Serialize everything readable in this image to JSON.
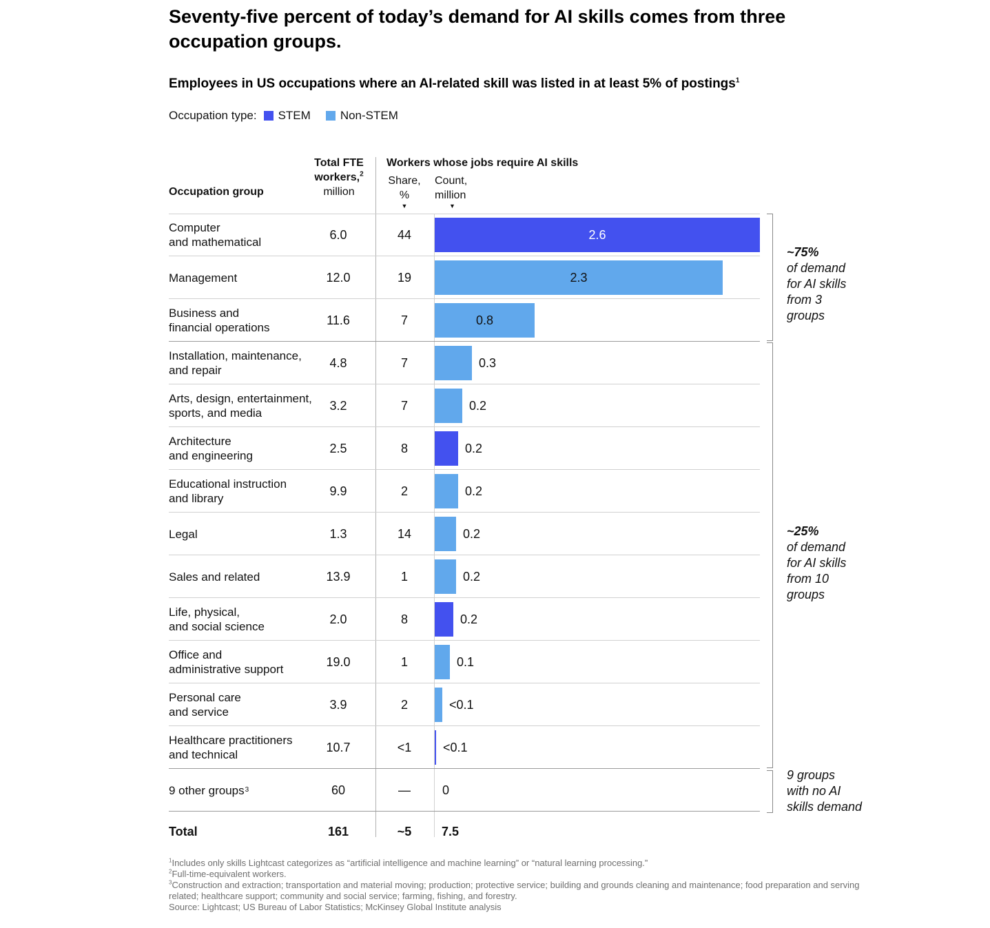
{
  "title": "Seventy-five percent of today’s demand for AI skills comes from three occupation groups.",
  "subtitle": "Employees in US occupations where an AI-related skill was listed in at least 5% of postings",
  "subtitle_sup": "1",
  "legend": {
    "label": "Occupation type:",
    "items": [
      {
        "name": "STEM",
        "color": "#4351ef"
      },
      {
        "name": "Non-STEM",
        "color": "#61a8ec"
      }
    ]
  },
  "headers": {
    "group": "Occupation group",
    "fte_line1": "Total FTE",
    "fte_line2": "workers,",
    "fte_sup": "2",
    "fte_unit": "million",
    "workers": "Workers whose jobs require AI skills",
    "share": "Share,",
    "share_unit": "%",
    "count": "Count,",
    "count_unit": "million",
    "arrow": "▼"
  },
  "chart_data": {
    "type": "bar",
    "title": "Employees in US occupations where an AI-related skill was listed in at least 5% of postings",
    "xlabel": "Count, million",
    "xlim": [
      0,
      2.6
    ],
    "rows": [
      {
        "group": "Computer\nand mathematical",
        "fte": "6.0",
        "share": "44",
        "count": 2.6,
        "label": "2.6",
        "type": "STEM"
      },
      {
        "group": "Management",
        "fte": "12.0",
        "share": "19",
        "count": 2.3,
        "label": "2.3",
        "type": "Non-STEM"
      },
      {
        "group": "Business and\nfinancial operations",
        "fte": "11.6",
        "share": "7",
        "count": 0.8,
        "label": "0.8",
        "type": "Non-STEM"
      },
      {
        "group": "Installation, maintenance,\nand repair",
        "fte": "4.8",
        "share": "7",
        "count": 0.3,
        "label": "0.3",
        "type": "Non-STEM"
      },
      {
        "group": "Arts, design, entertainment,\nsports, and media",
        "fte": "3.2",
        "share": "7",
        "count": 0.22,
        "label": "0.2",
        "type": "Non-STEM"
      },
      {
        "group": "Architecture\nand engineering",
        "fte": "2.5",
        "share": "8",
        "count": 0.19,
        "label": "0.2",
        "type": "STEM"
      },
      {
        "group": "Educational instruction\nand library",
        "fte": "9.9",
        "share": "2",
        "count": 0.19,
        "label": "0.2",
        "type": "Non-STEM"
      },
      {
        "group": "Legal",
        "fte": "1.3",
        "share": "14",
        "count": 0.17,
        "label": "0.2",
        "type": "Non-STEM"
      },
      {
        "group": "Sales and related",
        "fte": "13.9",
        "share": "1",
        "count": 0.17,
        "label": "0.2",
        "type": "Non-STEM"
      },
      {
        "group": "Life, physical,\nand social science",
        "fte": "2.0",
        "share": "8",
        "count": 0.15,
        "label": "0.2",
        "type": "STEM"
      },
      {
        "group": "Office and\nadministrative support",
        "fte": "19.0",
        "share": "1",
        "count": 0.12,
        "label": "0.1",
        "type": "Non-STEM"
      },
      {
        "group": "Personal care\nand service",
        "fte": "3.9",
        "share": "2",
        "count": 0.06,
        "label": "<0.1",
        "type": "Non-STEM"
      },
      {
        "group": "Healthcare practitioners\nand technical",
        "fte": "10.7",
        "share": "<1",
        "count": 0.01,
        "label": "<0.1",
        "type": "STEM"
      },
      {
        "group": "9 other groups",
        "group_sup": "3",
        "fte": "60",
        "share": "—",
        "count": 0,
        "label": "0",
        "type": "none"
      }
    ],
    "total": {
      "label": "Total",
      "fte": "161",
      "share": "~5",
      "count": "7.5"
    }
  },
  "annotations": {
    "top_pct": "~75%",
    "top_text": "of demand\nfor AI skills\nfrom 3\ngroups",
    "mid_pct": "~25%",
    "mid_text": "of demand\nfor AI skills\nfrom 10\ngroups",
    "bottom_text": "9 groups\nwith no AI\nskills demand"
  },
  "footnotes": {
    "n1_sup": "1",
    "n1": "Includes only skills Lightcast categorizes as “artificial intelligence and machine learning” or “natural learning processing.”",
    "n2_sup": "2",
    "n2": "Full-time-equivalent workers.",
    "n3_sup": "3",
    "n3": "Construction and extraction; transportation and material moving; production; protective service; building and grounds cleaning and maintenance; food preparation and serving related; healthcare support; community and social service; farming, fishing, and forestry.",
    "source": "Source: Lightcast; US Bureau of Labor Statistics; McKinsey Global Institute analysis"
  }
}
